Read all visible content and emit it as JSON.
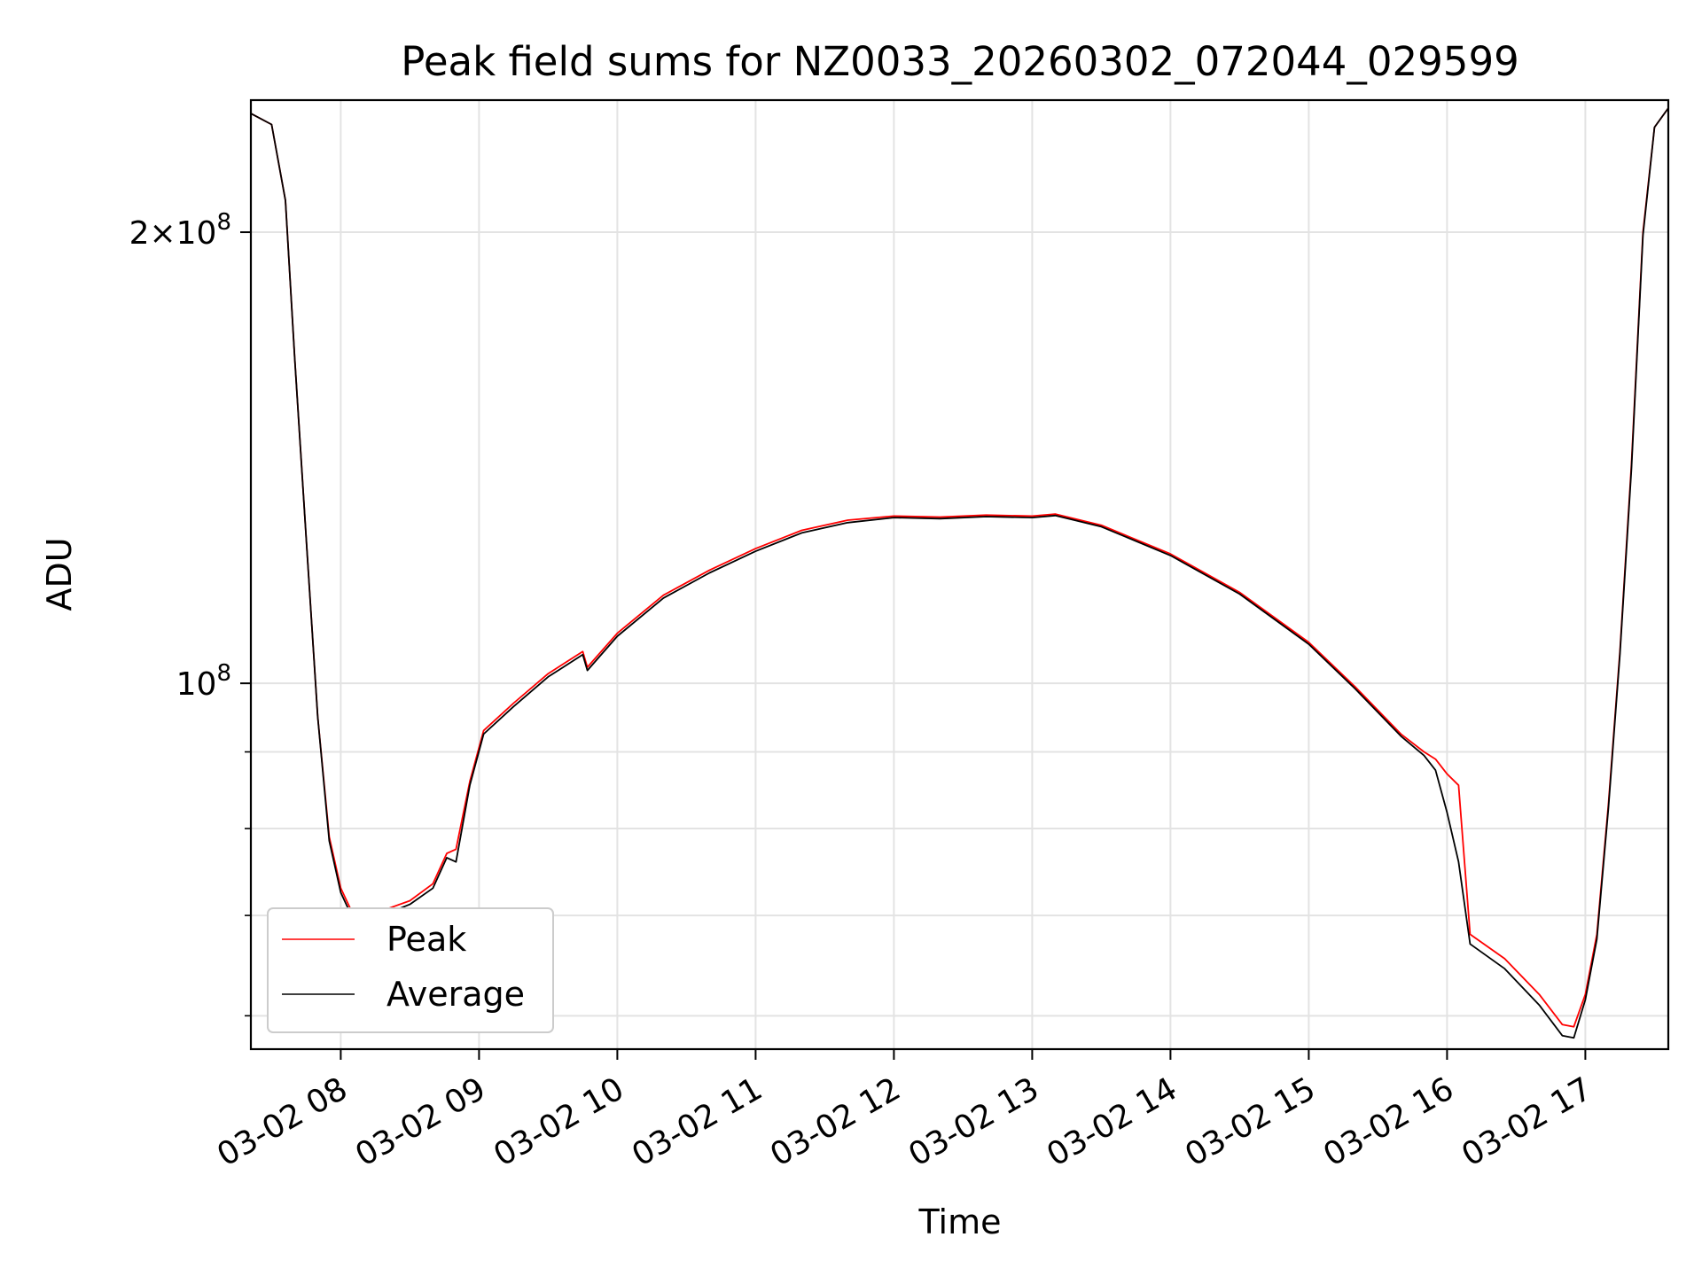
{
  "chart_data": {
    "type": "line",
    "title": "Peak field sums for NZ0033_20260302_072044_029599",
    "xlabel": "Time",
    "ylabel": "ADU",
    "y_scale": "log",
    "ylim": [
      57000000,
      245000000
    ],
    "xlim": [
      "2026-03-02 07:21",
      "2026-03-02 17:36"
    ],
    "grid": true,
    "legend_position": "lower-left",
    "x_ticks": [
      {
        "x": "2026-03-02 08:00",
        "label": "03-02 08"
      },
      {
        "x": "2026-03-02 09:00",
        "label": "03-02 09"
      },
      {
        "x": "2026-03-02 10:00",
        "label": "03-02 10"
      },
      {
        "x": "2026-03-02 11:00",
        "label": "03-02 11"
      },
      {
        "x": "2026-03-02 12:00",
        "label": "03-02 12"
      },
      {
        "x": "2026-03-02 13:00",
        "label": "03-02 13"
      },
      {
        "x": "2026-03-02 14:00",
        "label": "03-02 14"
      },
      {
        "x": "2026-03-02 15:00",
        "label": "03-02 15"
      },
      {
        "x": "2026-03-02 16:00",
        "label": "03-02 16"
      },
      {
        "x": "2026-03-02 17:00",
        "label": "03-02 17"
      }
    ],
    "y_ticks_major": [
      {
        "y": 100000000,
        "base": "10",
        "exp": "8",
        "mantissa": ""
      },
      {
        "y": 200000000,
        "base": "10",
        "exp": "8",
        "mantissa": "2"
      }
    ],
    "y_ticks_minor": [
      60000000,
      70000000,
      80000000,
      90000000
    ],
    "series": [
      {
        "name": "Peak",
        "color": "#ff0000",
        "points": [
          [
            "2026-03-02 07:21",
            240000000
          ],
          [
            "2026-03-02 07:30",
            236000000
          ],
          [
            "2026-03-02 07:36",
            210000000
          ],
          [
            "2026-03-02 07:40",
            165000000
          ],
          [
            "2026-03-02 07:45",
            125000000
          ],
          [
            "2026-03-02 07:50",
            95000000
          ],
          [
            "2026-03-02 07:55",
            79000000
          ],
          [
            "2026-03-02 08:00",
            73000000
          ],
          [
            "2026-03-02 08:05",
            70300000
          ],
          [
            "2026-03-02 08:10",
            70000000
          ],
          [
            "2026-03-02 08:20",
            70700000
          ],
          [
            "2026-03-02 08:30",
            71600000
          ],
          [
            "2026-03-02 08:40",
            73500000
          ],
          [
            "2026-03-02 08:46",
            77000000
          ],
          [
            "2026-03-02 08:50",
            77500000
          ],
          [
            "2026-03-02 08:56",
            86000000
          ],
          [
            "2026-03-02 09:02",
            93000000
          ],
          [
            "2026-03-02 09:15",
            97000000
          ],
          [
            "2026-03-02 09:30",
            101500000
          ],
          [
            "2026-03-02 09:45",
            105000000
          ],
          [
            "2026-03-02 09:47",
            102500000
          ],
          [
            "2026-03-02 10:00",
            108000000
          ],
          [
            "2026-03-02 10:20",
            114500000
          ],
          [
            "2026-03-02 10:40",
            119000000
          ],
          [
            "2026-03-02 11:00",
            123000000
          ],
          [
            "2026-03-02 11:20",
            126500000
          ],
          [
            "2026-03-02 11:40",
            128500000
          ],
          [
            "2026-03-02 12:00",
            129300000
          ],
          [
            "2026-03-02 12:20",
            129100000
          ],
          [
            "2026-03-02 12:40",
            129500000
          ],
          [
            "2026-03-02 13:00",
            129300000
          ],
          [
            "2026-03-02 13:10",
            129700000
          ],
          [
            "2026-03-02 13:30",
            127500000
          ],
          [
            "2026-03-02 14:00",
            122000000
          ],
          [
            "2026-03-02 14:30",
            115000000
          ],
          [
            "2026-03-02 15:00",
            106500000
          ],
          [
            "2026-03-02 15:20",
            99500000
          ],
          [
            "2026-03-02 15:40",
            92500000
          ],
          [
            "2026-03-02 15:50",
            90000000
          ],
          [
            "2026-03-02 15:55",
            89000000
          ],
          [
            "2026-03-02 16:00",
            87000000
          ],
          [
            "2026-03-02 16:05",
            85500000
          ],
          [
            "2026-03-02 16:10",
            68000000
          ],
          [
            "2026-03-02 16:25",
            65500000
          ],
          [
            "2026-03-02 16:40",
            62000000
          ],
          [
            "2026-03-02 16:50",
            59200000
          ],
          [
            "2026-03-02 16:55",
            59000000
          ],
          [
            "2026-03-02 17:00",
            62000000
          ],
          [
            "2026-03-02 17:05",
            68000000
          ],
          [
            "2026-03-02 17:10",
            83000000
          ],
          [
            "2026-03-02 17:15",
            105000000
          ],
          [
            "2026-03-02 17:20",
            140000000
          ],
          [
            "2026-03-02 17:25",
            200000000
          ],
          [
            "2026-03-02 17:30",
            235000000
          ],
          [
            "2026-03-02 17:36",
            242000000
          ]
        ]
      },
      {
        "name": "Average",
        "color": "#000000",
        "points": [
          [
            "2026-03-02 07:21",
            240000000
          ],
          [
            "2026-03-02 07:30",
            236000000
          ],
          [
            "2026-03-02 07:36",
            210000000
          ],
          [
            "2026-03-02 07:40",
            165000000
          ],
          [
            "2026-03-02 07:45",
            125000000
          ],
          [
            "2026-03-02 07:50",
            95000000
          ],
          [
            "2026-03-02 07:55",
            78500000
          ],
          [
            "2026-03-02 08:00",
            72500000
          ],
          [
            "2026-03-02 08:05",
            69800000
          ],
          [
            "2026-03-02 08:10",
            69500000
          ],
          [
            "2026-03-02 08:20",
            70200000
          ],
          [
            "2026-03-02 08:30",
            71200000
          ],
          [
            "2026-03-02 08:40",
            73000000
          ],
          [
            "2026-03-02 08:46",
            76500000
          ],
          [
            "2026-03-02 08:50",
            76000000
          ],
          [
            "2026-03-02 08:56",
            85500000
          ],
          [
            "2026-03-02 09:02",
            92500000
          ],
          [
            "2026-03-02 09:15",
            96500000
          ],
          [
            "2026-03-02 09:30",
            101000000
          ],
          [
            "2026-03-02 09:45",
            104500000
          ],
          [
            "2026-03-02 09:47",
            102000000
          ],
          [
            "2026-03-02 10:00",
            107500000
          ],
          [
            "2026-03-02 10:20",
            114000000
          ],
          [
            "2026-03-02 10:40",
            118500000
          ],
          [
            "2026-03-02 11:00",
            122500000
          ],
          [
            "2026-03-02 11:20",
            126000000
          ],
          [
            "2026-03-02 11:40",
            128000000
          ],
          [
            "2026-03-02 12:00",
            129000000
          ],
          [
            "2026-03-02 12:20",
            128800000
          ],
          [
            "2026-03-02 12:40",
            129200000
          ],
          [
            "2026-03-02 13:00",
            129000000
          ],
          [
            "2026-03-02 13:10",
            129400000
          ],
          [
            "2026-03-02 13:30",
            127200000
          ],
          [
            "2026-03-02 14:00",
            121700000
          ],
          [
            "2026-03-02 14:30",
            114700000
          ],
          [
            "2026-03-02 15:00",
            106200000
          ],
          [
            "2026-03-02 15:20",
            99200000
          ],
          [
            "2026-03-02 15:40",
            92200000
          ],
          [
            "2026-03-02 15:50",
            89500000
          ],
          [
            "2026-03-02 15:55",
            87500000
          ],
          [
            "2026-03-02 16:00",
            82000000
          ],
          [
            "2026-03-02 16:05",
            76000000
          ],
          [
            "2026-03-02 16:10",
            67000000
          ],
          [
            "2026-03-02 16:25",
            64500000
          ],
          [
            "2026-03-02 16:40",
            61000000
          ],
          [
            "2026-03-02 16:50",
            58200000
          ],
          [
            "2026-03-02 16:55",
            58000000
          ],
          [
            "2026-03-02 17:00",
            61500000
          ],
          [
            "2026-03-02 17:05",
            67500000
          ],
          [
            "2026-03-02 17:10",
            82500000
          ],
          [
            "2026-03-02 17:15",
            104500000
          ],
          [
            "2026-03-02 17:20",
            139000000
          ],
          [
            "2026-03-02 17:25",
            199000000
          ],
          [
            "2026-03-02 17:30",
            235000000
          ],
          [
            "2026-03-02 17:36",
            242000000
          ]
        ]
      }
    ]
  }
}
